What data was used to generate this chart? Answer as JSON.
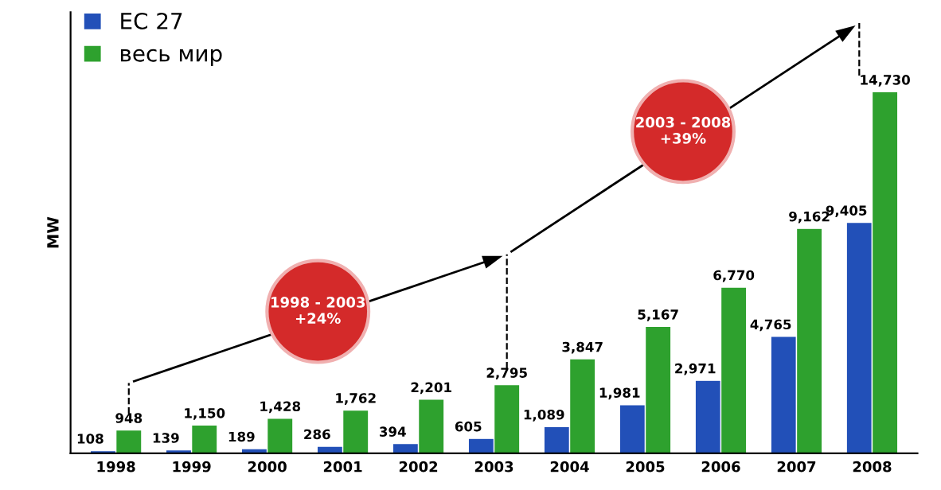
{
  "chart_data": {
    "type": "bar",
    "ylabel": "MW",
    "categories": [
      "1998",
      "1999",
      "2000",
      "2001",
      "2002",
      "2003",
      "2004",
      "2005",
      "2006",
      "2007",
      "2008"
    ],
    "series": [
      {
        "name": "ЕС 27",
        "color": "#2250b8",
        "values": [
          108,
          139,
          189,
          286,
          394,
          605,
          1089,
          1981,
          2971,
          4765,
          9405
        ],
        "value_labels": [
          "108",
          "139",
          "189",
          "286",
          "394",
          "605",
          "1,089",
          "1,981",
          "2,971",
          "4,765",
          "9,405"
        ]
      },
      {
        "name": "весь мир",
        "color": "#2ea12e",
        "values": [
          948,
          1150,
          1428,
          1762,
          2201,
          2795,
          3847,
          5167,
          6770,
          9162,
          14730
        ],
        "value_labels": [
          "948",
          "1,150",
          "1,428",
          "1,762",
          "2,201",
          "2,795",
          "3,847",
          "5,167",
          "6,770",
          "9,162",
          "14,730"
        ]
      }
    ],
    "annotations": [
      "1998 - 2003\n+24%",
      "2003 - 2008\n+39%"
    ],
    "legend": "top left",
    "grid": false
  }
}
